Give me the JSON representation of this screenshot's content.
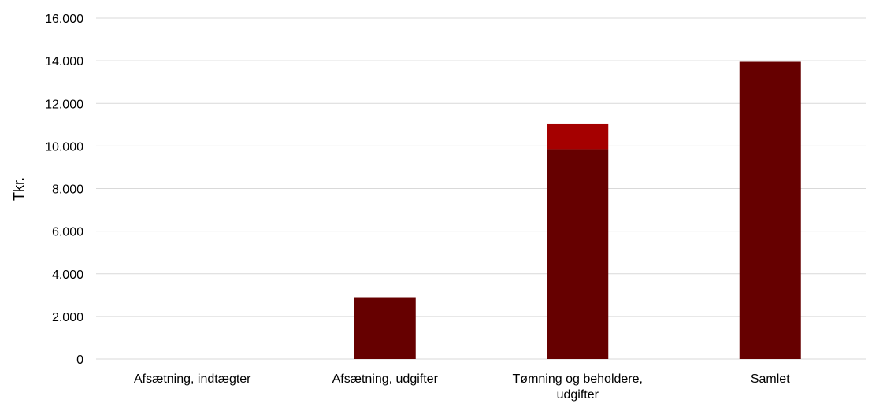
{
  "chart_data": {
    "type": "bar",
    "stacked": true,
    "categories": [
      [
        "Afsætning, indtægter"
      ],
      [
        "Afsætning, udgifter"
      ],
      [
        "Tømning og beholdere,",
        "udgifter"
      ],
      [
        "Samlet"
      ]
    ],
    "series": [
      {
        "values": [
          0,
          2900,
          9850,
          13950
        ],
        "color": "#660000"
      },
      {
        "values": [
          0,
          0,
          1200,
          0
        ],
        "color": "#a50000"
      }
    ],
    "ylabel": "Tkr.",
    "ylim": [
      0,
      16000
    ],
    "yticks": [
      0,
      2000,
      4000,
      6000,
      8000,
      10000,
      12000,
      14000,
      16000
    ],
    "ytick_labels": [
      "0",
      "2.000",
      "4.000",
      "6.000",
      "8.000",
      "10.000",
      "12.000",
      "14.000",
      "16.000"
    ],
    "grid": true,
    "legend": false
  }
}
